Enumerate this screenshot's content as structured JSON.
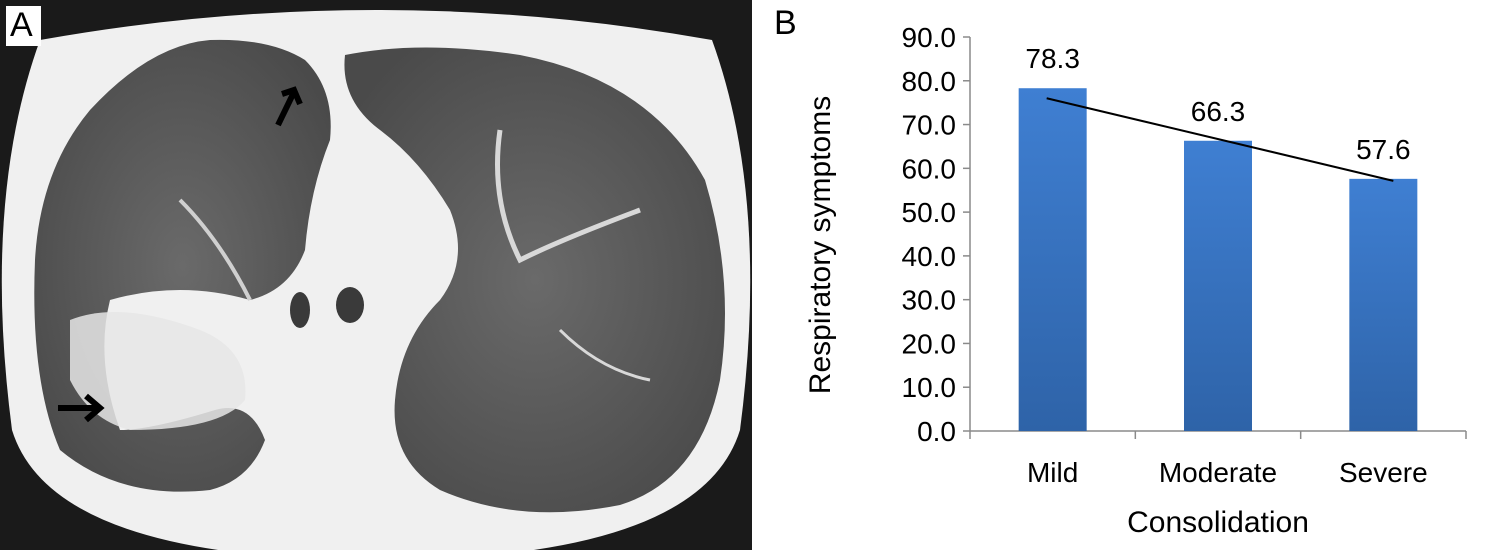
{
  "panels": {
    "a": {
      "label": "A"
    },
    "b": {
      "label": "B"
    }
  },
  "chart_data": {
    "type": "bar",
    "categories": [
      "Mild",
      "Moderate",
      "Severe"
    ],
    "values": [
      78.3,
      66.3,
      57.6
    ],
    "data_labels": [
      "78.3",
      "66.3",
      "57.6"
    ],
    "title": "",
    "xlabel": "Consolidation",
    "ylabel": "Respiratory symptoms",
    "ylim": [
      0,
      90
    ],
    "y_ticks": [
      "0.0",
      "10.0",
      "20.0",
      "30.0",
      "40.0",
      "50.0",
      "60.0",
      "70.0",
      "80.0",
      "90.0"
    ],
    "trendline": true,
    "grid": false,
    "legend": "none",
    "bar_color": "#2e63a8",
    "bar_color_light": "#3f7fd2"
  }
}
